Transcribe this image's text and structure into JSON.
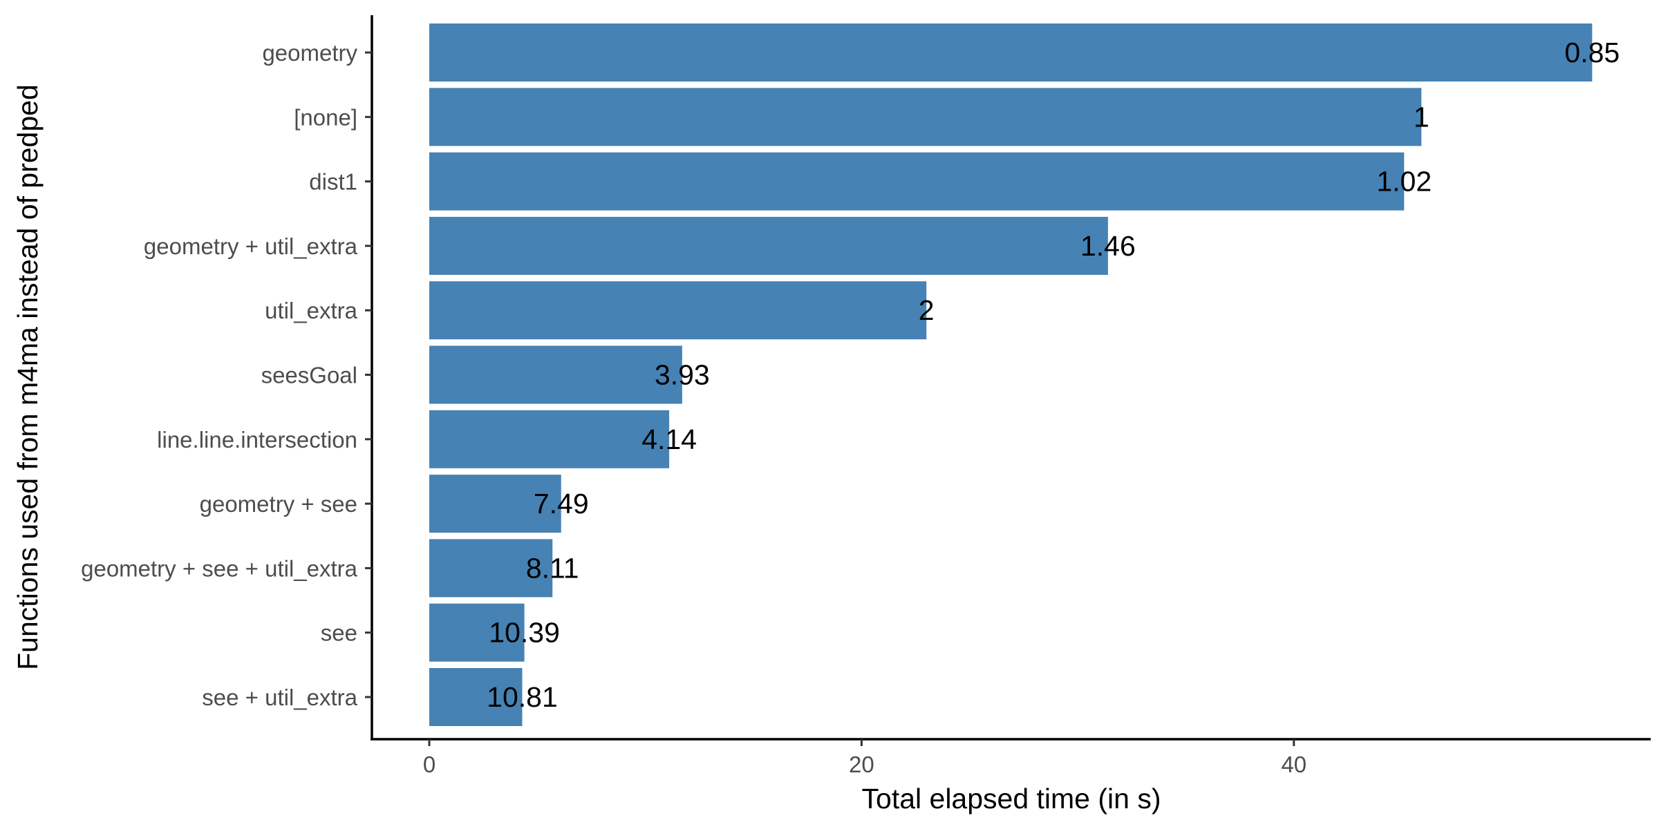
{
  "chart_data": {
    "type": "bar",
    "orientation": "horizontal",
    "xlabel": "Total elapsed time (in s)",
    "ylabel": "Functions used from m4ma instead of predped",
    "xlim": [
      0,
      56
    ],
    "x_ticks": [
      0,
      20,
      40
    ],
    "x_tick_labels": [
      "0",
      "20",
      "40"
    ],
    "grid": false,
    "categories": [
      "geometry",
      "[none]",
      "dist1",
      "geometry + util_extra",
      "util_extra",
      "seesGoal",
      "line.line.intersection",
      "geometry + see",
      "geometry + see + util_extra",
      "see",
      "see + util_extra"
    ],
    "values": [
      53.8,
      45.9,
      45.1,
      31.4,
      23.0,
      11.7,
      11.1,
      6.1,
      5.7,
      4.4,
      4.3
    ],
    "data_labels": [
      "0.85",
      "1",
      "1.02",
      "1.46",
      "2",
      "3.93",
      "4.14",
      "7.49",
      "8.11",
      "10.39",
      "10.81"
    ],
    "bar_color": "#4682B4",
    "label_color": "#000000",
    "tick_color": "#4d4d4d"
  }
}
